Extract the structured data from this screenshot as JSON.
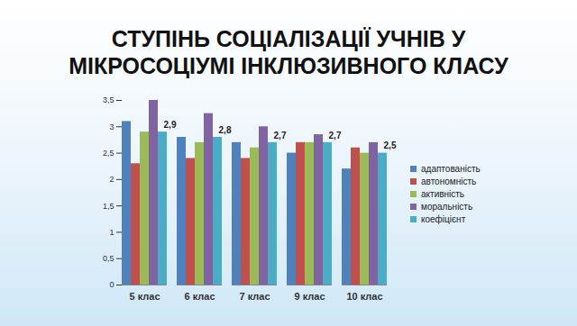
{
  "chart_data": {
    "type": "bar",
    "title": "СТУПІНЬ СОЦІАЛІЗАЦІЇ УЧНІВ У МІКРОСОЦІУМІ ІНКЛЮЗИВНОГО КЛАСУ",
    "categories": [
      "5 клас",
      "6 клас",
      "7 клас",
      "9 клас",
      "10 клас"
    ],
    "series": [
      {
        "name": "адаптованість",
        "color": "#4F81BD",
        "values": [
          3.1,
          2.8,
          2.7,
          2.5,
          2.2
        ]
      },
      {
        "name": "автономність",
        "color": "#C0504D",
        "values": [
          2.3,
          2.4,
          2.4,
          2.7,
          2.6
        ]
      },
      {
        "name": "активність",
        "color": "#9BBB59",
        "values": [
          2.9,
          2.7,
          2.6,
          2.7,
          2.5
        ]
      },
      {
        "name": "моральність",
        "color": "#8064A2",
        "values": [
          3.5,
          3.25,
          3.0,
          2.85,
          2.7
        ]
      },
      {
        "name": "коефіцієнт",
        "color": "#4BACC6",
        "values": [
          2.9,
          2.8,
          2.7,
          2.7,
          2.5
        ],
        "data_labels": true,
        "value_labels": [
          "2,9",
          "2,8",
          "2,7",
          "2,7",
          "2,5"
        ]
      }
    ],
    "ylim": [
      0,
      3.5
    ],
    "yticks": [
      0,
      {
        "value": 0.5,
        "label": "0,5"
      },
      1,
      {
        "value": 1.5,
        "label": "1,5"
      },
      2,
      {
        "value": 2.5,
        "label": "2,5"
      },
      3,
      {
        "value": 3.5,
        "label": "3,5"
      }
    ],
    "grid": false,
    "legend": "right"
  }
}
